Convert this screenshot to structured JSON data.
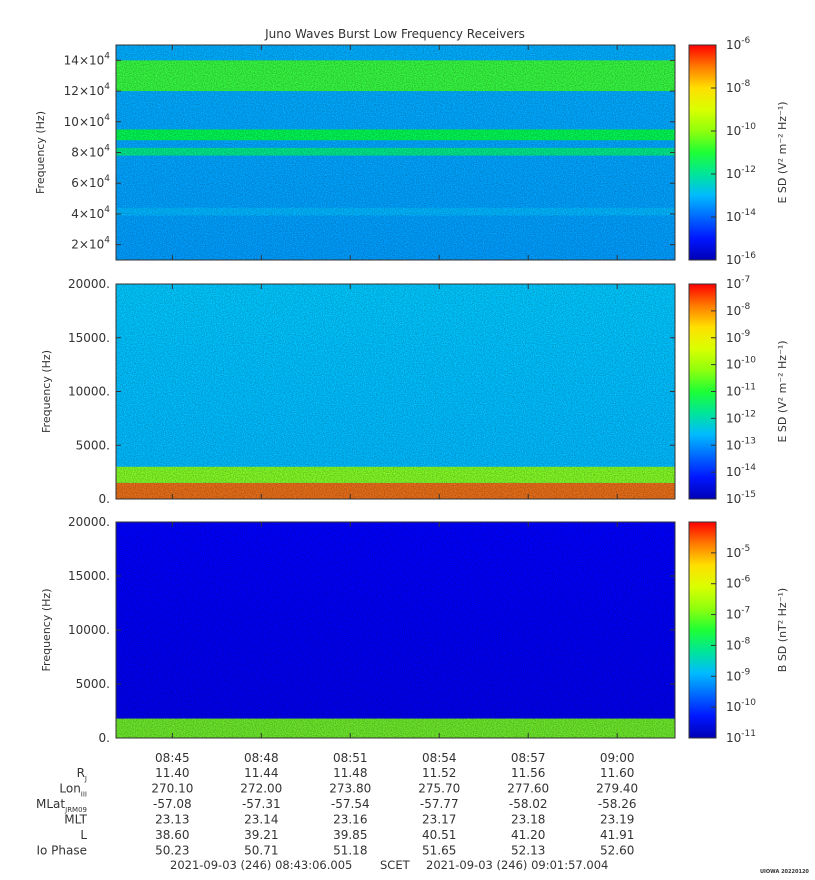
{
  "title": "Juno Waves Burst Low Frequency Receivers",
  "footer": {
    "start": "2021-09-03 (246) 08:43:06.005",
    "frame": "SCET",
    "end": "2021-09-03 (246) 09:01:57.004",
    "tag": "UIOWA 20220120"
  },
  "time_axis": {
    "ticks": [
      "08:45",
      "08:48",
      "08:51",
      "08:54",
      "08:57",
      "09:00"
    ],
    "tick_minutes": [
      1.9,
      4.9,
      7.9,
      10.9,
      13.9,
      16.9
    ],
    "range_minutes": [
      0,
      18.85
    ],
    "data_gaps": [
      {
        "from": "08:45:00.0",
        "to": "08:45:00.0",
        "from_min": 0,
        "to_min": 0
      }
    ]
  },
  "ephemeris": {
    "rows": [
      {
        "label": "R",
        "sub": "J",
        "values": [
          "11.40",
          "11.44",
          "11.48",
          "11.52",
          "11.56",
          "11.60"
        ]
      },
      {
        "label": "Lon",
        "sub": "III",
        "values": [
          "270.10",
          "272.00",
          "273.80",
          "275.70",
          "277.60",
          "279.40"
        ]
      },
      {
        "label": "MLat",
        "sub": "JRM09",
        "values": [
          "-57.08",
          "-57.31",
          "-57.54",
          "-57.77",
          "-58.02",
          "-58.26"
        ]
      },
      {
        "label": "MLT",
        "sub": "",
        "values": [
          "23.13",
          "23.14",
          "23.16",
          "23.17",
          "23.18",
          "23.19"
        ]
      },
      {
        "label": "L",
        "sub": "",
        "values": [
          "38.60",
          "39.21",
          "39.85",
          "40.51",
          "41.20",
          "41.91"
        ]
      },
      {
        "label": "Io Phase",
        "sub": "",
        "values": [
          "50.23",
          "50.71",
          "51.18",
          "51.65",
          "52.13",
          "52.60"
        ]
      }
    ]
  },
  "chart_data": [
    {
      "type": "heatmap",
      "ylabel": "Frequency (Hz)",
      "ylim": [
        10000,
        150000
      ],
      "yticks": [
        {
          "value": 20000,
          "mant": "2×10",
          "exp": "4"
        },
        {
          "value": 40000,
          "mant": "4×10",
          "exp": "4"
        },
        {
          "value": 60000,
          "mant": "6×10",
          "exp": "4"
        },
        {
          "value": 80000,
          "mant": "8×10",
          "exp": "4"
        },
        {
          "value": 100000,
          "mant": "10×10",
          "exp": "4"
        },
        {
          "value": 120000,
          "mant": "12×10",
          "exp": "4"
        },
        {
          "value": 140000,
          "mant": "14×10",
          "exp": "4"
        }
      ],
      "colorbar": {
        "label": "E SD (V² m⁻² Hz⁻¹)",
        "scale": "log",
        "range_exp": [
          -16,
          -6
        ],
        "ticks": [
          {
            "exp": "-6"
          },
          {
            "exp": "-8"
          },
          {
            "exp": "-10"
          },
          {
            "exp": "-12"
          },
          {
            "exp": "-14"
          },
          {
            "exp": "-16"
          }
        ]
      },
      "features": [
        {
          "name": "intense emission band",
          "f_from": 120000,
          "f_to": 140000,
          "level": 0.55
        },
        {
          "name": "band",
          "f_from": 88000,
          "f_to": 95000,
          "level": 0.5
        },
        {
          "name": "band",
          "f_from": 78000,
          "f_to": 83000,
          "level": 0.45
        },
        {
          "name": "line",
          "f_from": 39000,
          "f_to": 44000,
          "level": 0.33
        }
      ],
      "background_level": 0.3
    },
    {
      "type": "heatmap",
      "ylabel": "Frequency (Hz)",
      "ylim": [
        0,
        20000
      ],
      "yticks": [
        {
          "value": 0,
          "mant": "0.",
          "exp": ""
        },
        {
          "value": 5000,
          "mant": "5000.",
          "exp": ""
        },
        {
          "value": 10000,
          "mant": "10000.",
          "exp": ""
        },
        {
          "value": 15000,
          "mant": "15000.",
          "exp": ""
        },
        {
          "value": 20000,
          "mant": "20000.",
          "exp": ""
        }
      ],
      "colorbar": {
        "label": "E SD (V² m⁻² Hz⁻¹)",
        "scale": "log",
        "range_exp": [
          -15,
          -7
        ],
        "ticks": [
          {
            "exp": "-7"
          },
          {
            "exp": "-8"
          },
          {
            "exp": "-9"
          },
          {
            "exp": "-10"
          },
          {
            "exp": "-11"
          },
          {
            "exp": "-12"
          },
          {
            "exp": "-13"
          },
          {
            "exp": "-14"
          },
          {
            "exp": "-15"
          }
        ]
      },
      "features": [
        {
          "name": "low-frequency intense emission",
          "f_from": 0,
          "f_to": 1500,
          "level": 0.92
        },
        {
          "name": "emission edge",
          "f_from": 1500,
          "f_to": 3000,
          "level": 0.62
        }
      ],
      "background_level": 0.33
    },
    {
      "type": "heatmap",
      "ylabel": "Frequency (Hz)",
      "ylim": [
        0,
        20000
      ],
      "yticks": [
        {
          "value": 0,
          "mant": "0.",
          "exp": ""
        },
        {
          "value": 5000,
          "mant": "5000.",
          "exp": ""
        },
        {
          "value": 10000,
          "mant": "10000.",
          "exp": ""
        },
        {
          "value": 15000,
          "mant": "15000.",
          "exp": ""
        },
        {
          "value": 20000,
          "mant": "20000.",
          "exp": ""
        }
      ],
      "colorbar": {
        "label": "B SD (nT² Hz⁻¹)",
        "scale": "log",
        "range_exp": [
          -11,
          -4
        ],
        "ticks": [
          {
            "exp": "-5"
          },
          {
            "exp": "-6"
          },
          {
            "exp": "-7"
          },
          {
            "exp": "-8"
          },
          {
            "exp": "-9"
          },
          {
            "exp": "-10"
          },
          {
            "exp": "-11"
          }
        ]
      },
      "features": [
        {
          "name": "low-frequency emission",
          "f_from": 0,
          "f_to": 1800,
          "level": 0.6
        }
      ],
      "background_level": 0.1
    }
  ]
}
